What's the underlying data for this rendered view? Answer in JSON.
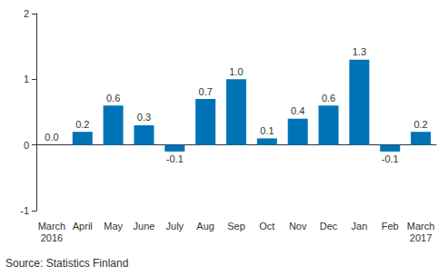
{
  "chart_data": {
    "type": "bar",
    "categories": [
      "March\n2016",
      "April",
      "May",
      "June",
      "July",
      "Aug",
      "Sep",
      "Oct",
      "Nov",
      "Dec",
      "Jan",
      "Feb",
      "March\n2017"
    ],
    "values": [
      0.0,
      0.2,
      0.6,
      0.3,
      -0.1,
      0.7,
      1.0,
      0.1,
      0.4,
      0.6,
      1.3,
      -0.1,
      0.2
    ],
    "value_labels": [
      "0.0",
      "0.2",
      "0.6",
      "0.3",
      "-0.1",
      "0.7",
      "1.0",
      "0.1",
      "0.4",
      "0.6",
      "1.3",
      "-0.1",
      "0.2"
    ],
    "data_labels": true,
    "color": "#0073b7",
    "ylim": [
      -1,
      2
    ],
    "yticks": [
      -1,
      0,
      1,
      2
    ],
    "grid": false,
    "source": "Source: Statistics Finland"
  }
}
